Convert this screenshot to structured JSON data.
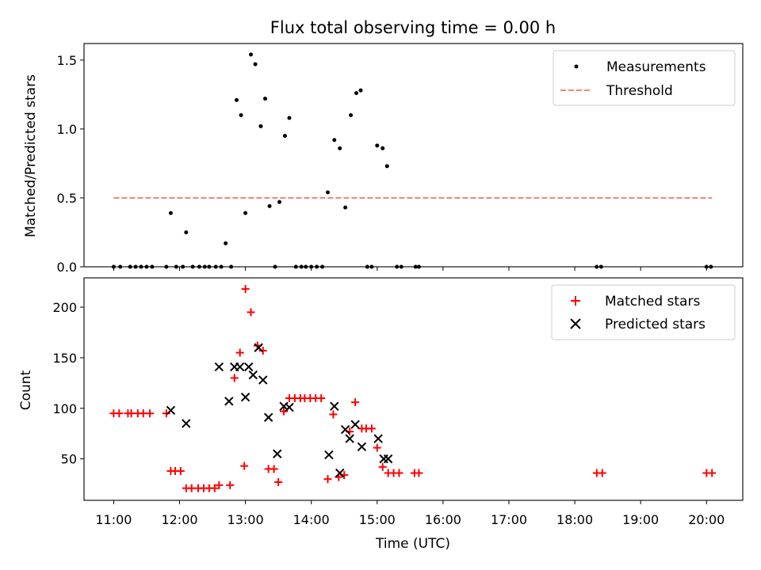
{
  "chart_data": [
    {
      "type": "scatter",
      "title": "Flux total observing time = 0.00 h",
      "xlabel": "",
      "ylabel": "Matched/Predicted stars",
      "xlim": [
        "10:33",
        "20:33"
      ],
      "ylim": [
        0,
        1.62
      ],
      "yticks": [
        "0.0",
        "0.5",
        "1.0",
        "1.5"
      ],
      "grid": false,
      "legend_placement": "top-right",
      "series": [
        {
          "name": "Measurements",
          "kind": "points",
          "color": "#000000",
          "points": [
            [
              "11:00",
              0
            ],
            [
              "11:06",
              0
            ],
            [
              "11:15",
              0
            ],
            [
              "11:20",
              0
            ],
            [
              "11:25",
              0
            ],
            [
              "11:30",
              0
            ],
            [
              "11:35",
              0
            ],
            [
              "11:48",
              0
            ],
            [
              "11:52",
              0.39
            ],
            [
              "11:57",
              0
            ],
            [
              "12:03",
              0
            ],
            [
              "12:06",
              0.25
            ],
            [
              "12:12",
              0
            ],
            [
              "12:18",
              0
            ],
            [
              "12:23",
              0
            ],
            [
              "12:27",
              0
            ],
            [
              "12:33",
              0
            ],
            [
              "12:38",
              0
            ],
            [
              "12:42",
              0.17
            ],
            [
              "12:47",
              0
            ],
            [
              "12:52",
              1.21
            ],
            [
              "12:56",
              1.1
            ],
            [
              "13:00",
              0.39
            ],
            [
              "13:05",
              1.54
            ],
            [
              "13:09",
              1.47
            ],
            [
              "13:14",
              1.02
            ],
            [
              "13:18",
              1.22
            ],
            [
              "13:22",
              0.44
            ],
            [
              "13:27",
              0
            ],
            [
              "13:31",
              0.47
            ],
            [
              "13:36",
              0.95
            ],
            [
              "13:40",
              1.08
            ],
            [
              "13:46",
              0
            ],
            [
              "13:51",
              0
            ],
            [
              "13:55",
              0
            ],
            [
              "14:00",
              0
            ],
            [
              "14:05",
              0
            ],
            [
              "14:10",
              0
            ],
            [
              "14:15",
              0.54
            ],
            [
              "14:21",
              0.92
            ],
            [
              "14:26",
              0.86
            ],
            [
              "14:31",
              0.43
            ],
            [
              "14:36",
              1.1
            ],
            [
              "14:41",
              1.26
            ],
            [
              "14:45",
              1.28
            ],
            [
              "14:51",
              0
            ],
            [
              "14:55",
              0
            ],
            [
              "15:00",
              0.88
            ],
            [
              "15:05",
              0.86
            ],
            [
              "15:09",
              0.73
            ],
            [
              "15:18",
              0
            ],
            [
              "15:22",
              0
            ],
            [
              "15:35",
              0
            ],
            [
              "15:38",
              0
            ],
            [
              "18:20",
              0
            ],
            [
              "18:24",
              0
            ],
            [
              "20:00",
              0
            ],
            [
              "20:04",
              0
            ]
          ]
        },
        {
          "name": "Threshold",
          "kind": "dashed-line",
          "color": "#ff7f7f",
          "x": [
            "11:00",
            "20:05"
          ],
          "y": [
            0.5,
            0.5
          ]
        }
      ]
    },
    {
      "type": "scatter",
      "title": "",
      "xlabel": "Time (UTC)",
      "ylabel": "Count",
      "xlim": [
        "10:33",
        "20:33"
      ],
      "ylim": [
        9,
        229
      ],
      "yticks": [
        "50",
        "100",
        "150",
        "200"
      ],
      "xticks": [
        "11:00",
        "12:00",
        "13:00",
        "14:00",
        "15:00",
        "16:00",
        "17:00",
        "18:00",
        "19:00",
        "20:00"
      ],
      "grid": false,
      "legend_placement": "top-right",
      "series": [
        {
          "name": "Matched stars",
          "marker": "plus",
          "color": "#ff0000",
          "points": [
            [
              "11:00",
              95
            ],
            [
              "11:05",
              95
            ],
            [
              "11:13",
              95
            ],
            [
              "11:16",
              95
            ],
            [
              "11:22",
              95
            ],
            [
              "11:27",
              95
            ],
            [
              "11:33",
              95
            ],
            [
              "11:48",
              95
            ],
            [
              "11:52",
              38
            ],
            [
              "11:56",
              38
            ],
            [
              "12:01",
              38
            ],
            [
              "12:06",
              21
            ],
            [
              "12:11",
              21
            ],
            [
              "12:17",
              21
            ],
            [
              "12:22",
              21
            ],
            [
              "12:27",
              21
            ],
            [
              "12:32",
              21
            ],
            [
              "12:36",
              24
            ],
            [
              "12:46",
              24
            ],
            [
              "12:50",
              130
            ],
            [
              "12:55",
              155
            ],
            [
              "12:59",
              43
            ],
            [
              "13:00",
              218
            ],
            [
              "13:05",
              195
            ],
            [
              "13:11",
              162
            ],
            [
              "13:16",
              157
            ],
            [
              "13:21",
              40
            ],
            [
              "13:26",
              40
            ],
            [
              "13:30",
              27
            ],
            [
              "13:35",
              97
            ],
            [
              "13:40",
              110
            ],
            [
              "13:45",
              110
            ],
            [
              "13:50",
              110
            ],
            [
              "13:54",
              110
            ],
            [
              "13:59",
              110
            ],
            [
              "14:04",
              110
            ],
            [
              "14:09",
              110
            ],
            [
              "14:15",
              30
            ],
            [
              "14:20",
              94
            ],
            [
              "14:25",
              32
            ],
            [
              "14:30",
              34
            ],
            [
              "14:35",
              77
            ],
            [
              "14:40",
              106
            ],
            [
              "14:46",
              80
            ],
            [
              "14:50",
              80
            ],
            [
              "14:55",
              80
            ],
            [
              "15:00",
              61
            ],
            [
              "15:05",
              42
            ],
            [
              "15:10",
              36
            ],
            [
              "15:15",
              36
            ],
            [
              "15:20",
              36
            ],
            [
              "15:34",
              36
            ],
            [
              "15:38",
              36
            ],
            [
              "18:20",
              36
            ],
            [
              "18:25",
              36
            ],
            [
              "20:00",
              36
            ],
            [
              "20:05",
              36
            ]
          ]
        },
        {
          "name": "Predicted stars",
          "marker": "x",
          "color": "#000000",
          "points": [
            [
              "11:52",
              98
            ],
            [
              "12:06",
              85
            ],
            [
              "12:36",
              141
            ],
            [
              "12:45",
              107
            ],
            [
              "12:50",
              141
            ],
            [
              "12:55",
              141
            ],
            [
              "13:00",
              111
            ],
            [
              "13:03",
              141
            ],
            [
              "13:07",
              133
            ],
            [
              "13:12",
              160
            ],
            [
              "13:16",
              128
            ],
            [
              "13:21",
              91
            ],
            [
              "13:29",
              55
            ],
            [
              "13:35",
              102
            ],
            [
              "13:40",
              101
            ],
            [
              "14:16",
              54
            ],
            [
              "14:21",
              102
            ],
            [
              "14:26",
              36
            ],
            [
              "14:31",
              79
            ],
            [
              "14:35",
              70
            ],
            [
              "14:40",
              84
            ],
            [
              "14:46",
              62
            ],
            [
              "15:01",
              70
            ],
            [
              "15:06",
              50
            ],
            [
              "15:10",
              50
            ]
          ]
        }
      ]
    }
  ]
}
